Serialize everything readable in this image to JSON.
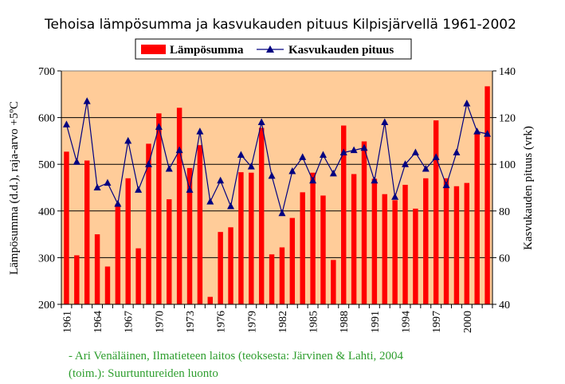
{
  "chart_data": {
    "type": "bar+line",
    "title": "Tehoisa lämpösumma ja kasvukauden pituus Kilpisjärvellä 1961-2002",
    "ylabel_left": "Lämpösumma (d.d.), raja-arvo +5ºC",
    "ylabel_right": "Kasvukauden pituus (vrk)",
    "ylim_left": [
      200,
      700
    ],
    "ylim_right": [
      40,
      140
    ],
    "yticks_left": [
      "200",
      "300",
      "400",
      "500",
      "600",
      "700"
    ],
    "yticks_right": [
      "40",
      "60",
      "80",
      "100",
      "120",
      "140"
    ],
    "x_tick_labels": [
      "1961",
      "1964",
      "1967",
      "1970",
      "1973",
      "1976",
      "1979",
      "1982",
      "1985",
      "1988",
      "1991",
      "1994",
      "1997",
      "2000"
    ],
    "grid": true,
    "legend_placement": "top-center",
    "x": [
      1961,
      1962,
      1963,
      1964,
      1965,
      1966,
      1967,
      1968,
      1969,
      1970,
      1971,
      1972,
      1973,
      1974,
      1975,
      1976,
      1977,
      1978,
      1979,
      1980,
      1981,
      1982,
      1983,
      1984,
      1985,
      1986,
      1987,
      1988,
      1989,
      1990,
      1991,
      1992,
      1993,
      1994,
      1995,
      1996,
      1997,
      1998,
      1999,
      2000,
      2001,
      2002
    ],
    "series": [
      {
        "name": "Lämpösumma",
        "kind": "bar",
        "axis": "left",
        "color": "#ff0000",
        "values": [
          527,
          305,
          508,
          350,
          281,
          415,
          470,
          320,
          544,
          609,
          425,
          621,
          492,
          541,
          216,
          355,
          365,
          483,
          482,
          578,
          307,
          322,
          385,
          440,
          482,
          433,
          295,
          583,
          479,
          549,
          469,
          436,
          423,
          456,
          405,
          470,
          594,
          470,
          453,
          460,
          565,
          667
        ]
      },
      {
        "name": "Kasvukauden pituus",
        "kind": "line",
        "axis": "right",
        "color": "#000080",
        "values": [
          117,
          101,
          127,
          90,
          92,
          83,
          110,
          89,
          100,
          116,
          98,
          106,
          89,
          114,
          84,
          93,
          82,
          104,
          99,
          118,
          95,
          79,
          97,
          103,
          93,
          104,
          96,
          105,
          106,
          107,
          93,
          118,
          86,
          100,
          105,
          98,
          103,
          91,
          105,
          126,
          114,
          113
        ]
      }
    ]
  },
  "colors": {
    "plot_background": "#ffcc99",
    "bar": "#ff0000",
    "line": "#000080",
    "credit_text": "#2e9e2e"
  },
  "credit": {
    "line1": "- Ari Venäläinen, Ilmatieteen laitos (teoksesta: Järvinen & Lahti, 2004",
    "line2": "(toim.): Suurtuntureiden luonto"
  }
}
